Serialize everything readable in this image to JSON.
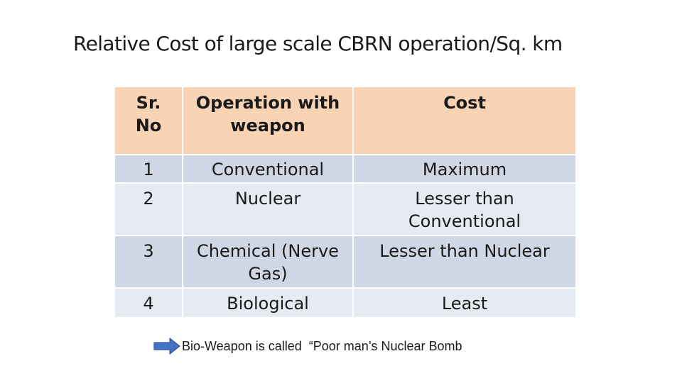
{
  "title": "Relative Cost of large scale CBRN operation/Sq. km",
  "table": {
    "headers": [
      "Sr. No",
      "Operation with weapon",
      "Cost"
    ],
    "rows": [
      {
        "sr": "1",
        "operation": "Conventional",
        "cost": "Maximum"
      },
      {
        "sr": "2",
        "operation": "Nuclear",
        "cost": "Lesser than Conventional"
      },
      {
        "sr": "3",
        "operation": "Chemical (Nerve Gas)",
        "cost": "Lesser than Nuclear"
      },
      {
        "sr": "4",
        "operation": "Biological",
        "cost": "Least"
      }
    ]
  },
  "note": {
    "icon": "arrow-right-icon",
    "text": "Bio-Weapon is called  “Poor man’s Nuclear Bomb"
  },
  "colors": {
    "header_bg": "#f8d3b4",
    "row_dark": "#cfd6e4",
    "row_light": "#e6eaf2",
    "arrow": "#4472c4"
  }
}
